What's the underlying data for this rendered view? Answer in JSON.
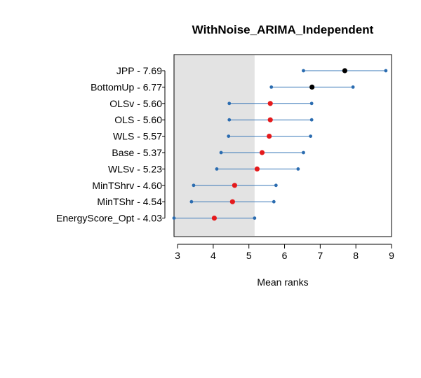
{
  "chart_data": {
    "type": "scatter",
    "title": "WithNoise_ARIMA_Independent",
    "xlabel": "Mean ranks",
    "ylabel": "",
    "xlim": [
      2.9,
      9.0
    ],
    "x_ticks": [
      3,
      4,
      5,
      6,
      7,
      8,
      9
    ],
    "critical_difference_band": [
      2.9,
      5.16
    ],
    "colors": {
      "band": "#e3e3e3",
      "interval_line": "#3a78b8",
      "interval_end": "#2b6cb0",
      "mean_in_band": "#e41a1c",
      "mean_out_band": "#000000",
      "axis": "#000000"
    },
    "methods": [
      {
        "label": "JPP - 7.69",
        "mean": 7.69,
        "low": 6.53,
        "high": 8.84,
        "in_band": false
      },
      {
        "label": "BottomUp - 6.77",
        "mean": 6.77,
        "low": 5.63,
        "high": 7.92,
        "in_band": false
      },
      {
        "label": "OLSv - 5.60",
        "mean": 5.6,
        "low": 4.45,
        "high": 6.76,
        "in_band": true
      },
      {
        "label": "OLS - 5.60",
        "mean": 5.6,
        "low": 4.45,
        "high": 6.76,
        "in_band": true
      },
      {
        "label": "WLS - 5.57",
        "mean": 5.57,
        "low": 4.43,
        "high": 6.73,
        "in_band": true
      },
      {
        "label": "Base - 5.37",
        "mean": 5.37,
        "low": 4.22,
        "high": 6.53,
        "in_band": true
      },
      {
        "label": "WLSv - 5.23",
        "mean": 5.23,
        "low": 4.1,
        "high": 6.38,
        "in_band": true
      },
      {
        "label": "MinTShrv - 4.60",
        "mean": 4.6,
        "low": 3.45,
        "high": 5.76,
        "in_band": true
      },
      {
        "label": "MinTShr - 4.54",
        "mean": 4.54,
        "low": 3.39,
        "high": 5.7,
        "in_band": true
      },
      {
        "label": "EnergyScore_Opt - 4.03",
        "mean": 4.03,
        "low": 2.9,
        "high": 5.16,
        "in_band": true
      }
    ]
  }
}
